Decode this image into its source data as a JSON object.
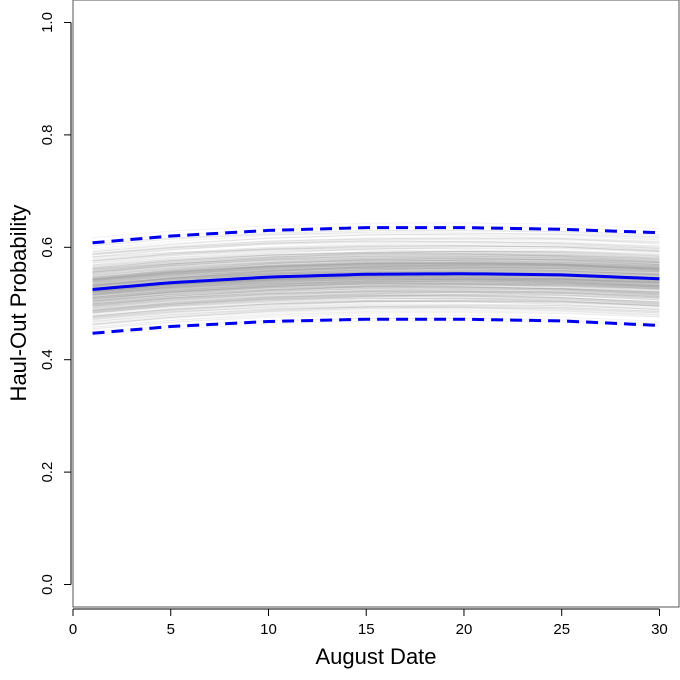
{
  "chart_data": {
    "type": "line",
    "title": "",
    "xlabel": "August Date",
    "ylabel": "Haul-Out Probability",
    "xlim": [
      0,
      31
    ],
    "ylim": [
      -0.04,
      1.04
    ],
    "x_ticks": [
      0,
      5,
      10,
      15,
      20,
      25,
      30
    ],
    "y_ticks": [
      0.0,
      0.2,
      0.4,
      0.6,
      0.8,
      1.0
    ],
    "x_tick_labels": [
      "0",
      "5",
      "10",
      "15",
      "20",
      "25",
      "30"
    ],
    "y_tick_labels": [
      "0.0",
      "0.2",
      "0.4",
      "0.6",
      "0.8",
      "1.0"
    ],
    "grid": false,
    "legend": "none",
    "colors": {
      "mean": "#0000ee",
      "interval": "#0000ee",
      "samples": "#9a9a9a"
    },
    "x": [
      1,
      5,
      10,
      15,
      20,
      25,
      30
    ],
    "series": [
      {
        "style": "solid",
        "values": [
          0.525,
          0.537,
          0.547,
          0.552,
          0.553,
          0.551,
          0.544
        ]
      },
      {
        "style": "dashed",
        "values": [
          0.608,
          0.62,
          0.63,
          0.635,
          0.635,
          0.632,
          0.626
        ]
      },
      {
        "style": "dashed",
        "values": [
          0.447,
          0.459,
          0.468,
          0.472,
          0.472,
          0.469,
          0.461
        ]
      }
    ],
    "samples": {
      "description_count": 400,
      "start_range": [
        0.4,
        0.68
      ],
      "end_range": [
        0.4,
        0.7
      ]
    }
  }
}
